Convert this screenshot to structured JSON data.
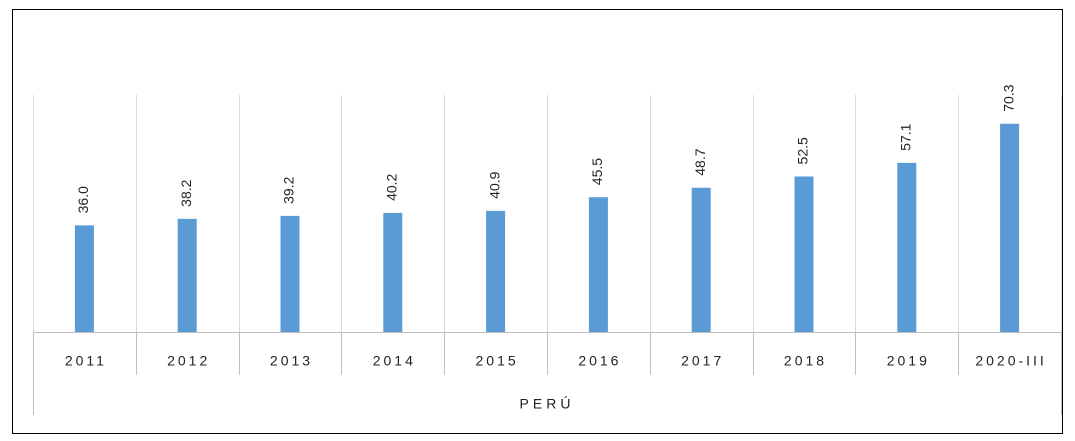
{
  "chart_data": {
    "type": "bar",
    "categories": [
      "2011",
      "2012",
      "2013",
      "2014",
      "2015",
      "2016",
      "2017",
      "2018",
      "2019",
      "2020-III"
    ],
    "values": [
      36.0,
      38.2,
      39.2,
      40.2,
      40.9,
      45.5,
      48.7,
      52.5,
      57.1,
      70.3
    ],
    "value_labels": [
      "36.0",
      "38.2",
      "39.2",
      "40.2",
      "40.9",
      "45.5",
      "48.7",
      "52.5",
      "57.1",
      "70.3"
    ],
    "x_group": "PERÚ",
    "color": "#5b9bd5",
    "ylim": [
      0,
      80
    ],
    "grid": true
  }
}
